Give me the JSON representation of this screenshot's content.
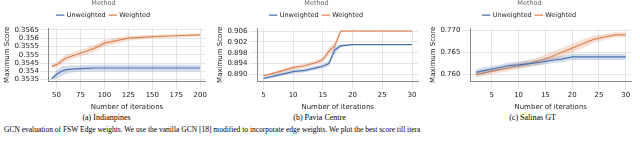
{
  "chart_data": [
    {
      "type": "line",
      "title": "(a) Indianpines",
      "x_label": "Number of iterations",
      "y_label": "Maximum Score",
      "legend": "top",
      "legend_title": "Method",
      "grid": true,
      "xlim": [
        42,
        205
      ],
      "xticks": [
        50,
        75,
        100,
        125,
        150,
        175,
        200
      ],
      "ylim": [
        0.3534,
        0.3566
      ],
      "yticks": [
        0.3535,
        0.354,
        0.3545,
        0.355,
        0.3555,
        0.356,
        0.3565
      ],
      "x": [
        45,
        50,
        55,
        60,
        70,
        80,
        90,
        100,
        125,
        150,
        175,
        200
      ],
      "series": [
        {
          "name": "Unweighted",
          "color": "#4c72b0",
          "values": [
            0.35355,
            0.3538,
            0.354,
            0.3541,
            0.35415,
            0.35418,
            0.3542,
            0.3542,
            0.3542,
            0.3542,
            0.3542,
            0.3542
          ],
          "lower": [
            0.3535,
            0.35355,
            0.3537,
            0.35385,
            0.35395,
            0.35398,
            0.354,
            0.354,
            0.354,
            0.354,
            0.354,
            0.354
          ],
          "upper": [
            0.3536,
            0.35405,
            0.3543,
            0.35435,
            0.35435,
            0.35438,
            0.3544,
            0.3544,
            0.3544,
            0.3544,
            0.3544,
            0.3544
          ]
        },
        {
          "name": "Weighted",
          "color": "#dd8452",
          "values": [
            0.3543,
            0.3544,
            0.3546,
            0.3548,
            0.355,
            0.3552,
            0.3554,
            0.3557,
            0.356,
            0.3561,
            0.35615,
            0.3562
          ],
          "lower": [
            0.3542,
            0.35425,
            0.3544,
            0.3546,
            0.3548,
            0.355,
            0.3552,
            0.3555,
            0.35585,
            0.356,
            0.35605,
            0.3561
          ],
          "upper": [
            0.3544,
            0.35455,
            0.3548,
            0.355,
            0.3552,
            0.3554,
            0.3556,
            0.3559,
            0.35615,
            0.3562,
            0.35625,
            0.3563
          ]
        }
      ]
    },
    {
      "type": "line",
      "title": "(b) Pavia Centre",
      "x_label": "Number of iterations",
      "y_label": "Maximum Score",
      "legend": "top",
      "legend_title": "Method",
      "grid": true,
      "xlim": [
        4,
        31
      ],
      "xticks": [
        5,
        10,
        15,
        20,
        25,
        30
      ],
      "ylim": [
        0.8875,
        0.907
      ],
      "yticks": [
        {
          "value": 0.89,
          "label": "0.890"
        },
        {
          "value": 0.894,
          "label": "0.894"
        },
        {
          "value": 0.898,
          "label": "0.898"
        },
        {
          "value": 0.902,
          "label": "0.902"
        },
        {
          "value": 0.906,
          "label": "0.906"
        }
      ],
      "x": [
        5,
        6,
        8,
        10,
        12,
        14,
        15,
        16,
        17,
        18,
        20,
        25,
        30
      ],
      "series": [
        {
          "name": "Unweighted",
          "color": "#4c72b0",
          "values": [
            0.8885,
            0.889,
            0.89,
            0.891,
            0.8915,
            0.8925,
            0.893,
            0.894,
            0.899,
            0.9005,
            0.901,
            0.901,
            0.901
          ],
          "lower": [
            0.888,
            0.8885,
            0.8893,
            0.8903,
            0.8908,
            0.8917,
            0.8922,
            0.893,
            0.8975,
            0.9,
            0.9008,
            0.9008,
            0.9008
          ],
          "upper": [
            0.889,
            0.8895,
            0.8907,
            0.8917,
            0.8922,
            0.8933,
            0.8938,
            0.895,
            0.9005,
            0.901,
            0.9012,
            0.9012,
            0.9012
          ]
        },
        {
          "name": "Weighted",
          "color": "#dd8452",
          "values": [
            0.8895,
            0.89,
            0.8912,
            0.8925,
            0.8932,
            0.8945,
            0.8955,
            0.8985,
            0.9005,
            0.906,
            0.906,
            0.906,
            0.906
          ],
          "lower": [
            0.889,
            0.8895,
            0.8905,
            0.8917,
            0.8924,
            0.8937,
            0.8945,
            0.897,
            0.899,
            0.9055,
            0.9058,
            0.9058,
            0.9058
          ],
          "upper": [
            0.89,
            0.8905,
            0.8919,
            0.8933,
            0.894,
            0.8953,
            0.8965,
            0.9,
            0.902,
            0.9063,
            0.9062,
            0.9062,
            0.9062
          ]
        }
      ]
    },
    {
      "type": "line",
      "title": "(c) Salinas GT",
      "x_label": "Number of iterations",
      "y_label": "Maximum Score",
      "legend": "top",
      "legend_title": "Method",
      "grid": true,
      "xlim": [
        1,
        31
      ],
      "xticks": [
        5,
        10,
        15,
        20,
        25,
        30
      ],
      "ylim": [
        0.7585,
        0.7705
      ],
      "yticks": [
        {
          "value": 0.76,
          "label": "0.760"
        },
        0.765,
        {
          "value": 0.77,
          "label": "0.770"
        }
      ],
      "x": [
        2,
        4,
        6,
        8,
        10,
        12,
        14,
        16,
        18,
        20,
        22,
        24,
        26,
        28,
        30
      ],
      "series": [
        {
          "name": "Unweighted",
          "color": "#4c72b0",
          "values": [
            0.7605,
            0.761,
            0.7615,
            0.762,
            0.7622,
            0.7625,
            0.7628,
            0.7632,
            0.7635,
            0.764,
            0.764,
            0.764,
            0.764,
            0.764,
            0.764
          ],
          "lower": [
            0.7598,
            0.7603,
            0.7608,
            0.7613,
            0.7615,
            0.7618,
            0.7621,
            0.7625,
            0.7628,
            0.7633,
            0.7633,
            0.7633,
            0.7633,
            0.7633,
            0.7633
          ],
          "upper": [
            0.7612,
            0.7617,
            0.7622,
            0.7627,
            0.7629,
            0.7632,
            0.7635,
            0.7639,
            0.7642,
            0.7647,
            0.7647,
            0.7647,
            0.7647,
            0.7647,
            0.7647
          ]
        },
        {
          "name": "Weighted",
          "color": "#dd8452",
          "values": [
            0.76,
            0.7605,
            0.761,
            0.7615,
            0.762,
            0.7625,
            0.7632,
            0.764,
            0.765,
            0.766,
            0.767,
            0.768,
            0.7685,
            0.769,
            0.769
          ],
          "lower": [
            0.7594,
            0.7598,
            0.7603,
            0.7608,
            0.7612,
            0.7617,
            0.7623,
            0.763,
            0.764,
            0.765,
            0.766,
            0.7672,
            0.7678,
            0.7684,
            0.7684
          ],
          "upper": [
            0.7606,
            0.7612,
            0.7617,
            0.7622,
            0.7628,
            0.7633,
            0.7641,
            0.765,
            0.766,
            0.767,
            0.768,
            0.7688,
            0.7692,
            0.7696,
            0.7696
          ]
        }
      ]
    }
  ],
  "caption": "GCN evaluation of FSW Edge weights. We use the vanilla GCN [18] modified to incorporate edge weights. We plot the best score till itera"
}
